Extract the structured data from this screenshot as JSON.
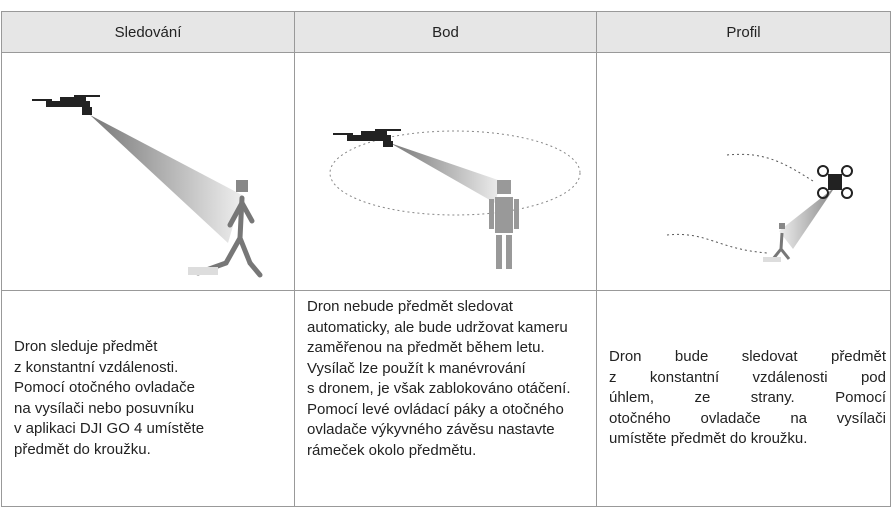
{
  "table": {
    "header": [
      "Sledování",
      "Bod",
      "Profil"
    ],
    "descriptions": [
      [
        "Dron sleduje předmět",
        "z konstantní vzdálenosti.",
        "Pomocí otočného ovladače",
        "na vysílači nebo posuvníku",
        "v aplikaci DJI GO 4 umístěte",
        "předmět do kroužku."
      ],
      [
        "Dron nebude předmět sledovat",
        "automaticky, ale bude udržovat kameru",
        "zaměřenou na předmět během letu.",
        "Vysílač lze použít k manévrování",
        "s dronem, je však zablokováno otáčení.",
        "Pomocí levé ovládací páky a otočného",
        "ovladače výkyvného závěsu nastavte",
        "rámeček okolo předmětu."
      ],
      [
        "Dron bude sledovat předmět",
        "z konstantní vzdálenosti pod",
        "úhlem, ze strany. Pomocí",
        "otočného ovladače na vysílači",
        "umístěte předmět do kroužku."
      ]
    ]
  }
}
